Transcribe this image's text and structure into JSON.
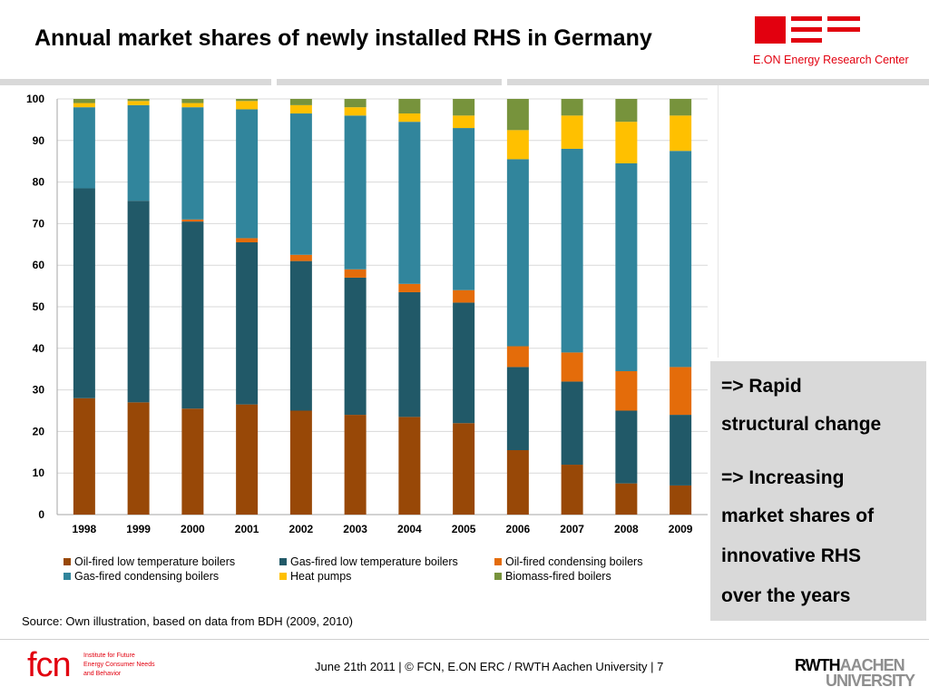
{
  "title": "Annual market shares of newly installed RHS in Germany",
  "logo_eon": {
    "text": "E.ON Energy Research Center",
    "color": "#e2000f"
  },
  "callout": {
    "line1": "=> Rapid",
    "line2": "structural change",
    "line3": "=> Increasing",
    "line4": "market shares of",
    "line5": "innovative RHS",
    "line6": "over the years"
  },
  "source": "Source: Own illustration, based on data from BDH (2009, 2010)",
  "footer": {
    "text": "June 21th 2011 | © FCN, E.ON ERC / RWTH Aachen University | 7"
  },
  "logo_fcn": {
    "mark": "fcn",
    "line1": "Institute for Future",
    "line2": "Energy Consumer Needs",
    "line3": "and Behavior"
  },
  "logo_rwth": {
    "line1_a": "RWTH",
    "line1_b": "AACHEN",
    "line2": "UNIVERSITY"
  },
  "chart_data": {
    "type": "bar",
    "stacked": true,
    "categories": [
      "1998",
      "1999",
      "2000",
      "2001",
      "2002",
      "2003",
      "2004",
      "2005",
      "2006",
      "2007",
      "2008",
      "2009"
    ],
    "ylim": [
      0,
      100
    ],
    "yticks": [
      0,
      10,
      20,
      30,
      40,
      50,
      60,
      70,
      80,
      90,
      100
    ],
    "grid": true,
    "legend_position": "bottom",
    "series": [
      {
        "name": "Oil-fired low temperature boilers",
        "color": "#984807",
        "values": [
          28,
          27,
          25.5,
          26.5,
          25,
          24,
          23.5,
          22,
          15.5,
          12,
          7.5,
          7
        ]
      },
      {
        "name": "Gas-fired low temperature boilers",
        "color": "#215968",
        "values": [
          50.5,
          48.5,
          45,
          39,
          36,
          33,
          30,
          29,
          20,
          20,
          17.5,
          17
        ]
      },
      {
        "name": "Oil-fired condensing boilers",
        "color": "#e46c0a",
        "values": [
          0,
          0,
          0.5,
          1,
          1.5,
          2,
          2,
          3,
          5,
          7,
          9.5,
          11.5
        ]
      },
      {
        "name": "Gas-fired condensing boilers",
        "color": "#31859c",
        "values": [
          19.5,
          23,
          27,
          31,
          34,
          37,
          39,
          39,
          45,
          49,
          50,
          52
        ]
      },
      {
        "name": "Heat pumps",
        "color": "#ffc000",
        "values": [
          1,
          1,
          1,
          2,
          2,
          2,
          2,
          3,
          7,
          8,
          10,
          8.5
        ]
      },
      {
        "name": "Biomass-fired boilers",
        "color": "#77933c",
        "values": [
          1,
          0.5,
          1,
          0.5,
          1.5,
          2,
          3.5,
          4,
          7.5,
          4,
          5.5,
          4
        ]
      }
    ]
  }
}
